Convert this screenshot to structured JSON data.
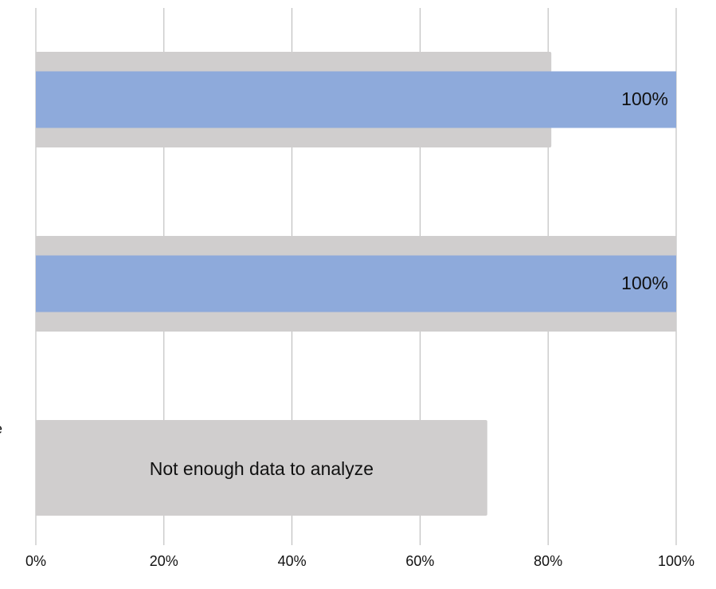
{
  "chart_data": {
    "type": "bar",
    "orientation": "horizontal",
    "categories": [
      null,
      null,
      "e"
    ],
    "series": [
      {
        "color": "#d0cece",
        "values": [
          80.5,
          100,
          70.5
        ]
      },
      {
        "color": "#8eaadb",
        "values": [
          100,
          100,
          null
        ],
        "value_labels": [
          "100%",
          "100%",
          null
        ]
      }
    ],
    "annotations": [
      "Not enough data to analyze"
    ],
    "xlim": [
      0,
      100
    ],
    "xticks": [
      {
        "value": 0,
        "label": "0%"
      },
      {
        "value": 20,
        "label": "20%"
      },
      {
        "value": 40,
        "label": "40%"
      },
      {
        "value": 60,
        "label": "60%"
      },
      {
        "value": 80,
        "label": "80%"
      },
      {
        "value": 100,
        "label": "100%"
      }
    ],
    "grid": true
  }
}
